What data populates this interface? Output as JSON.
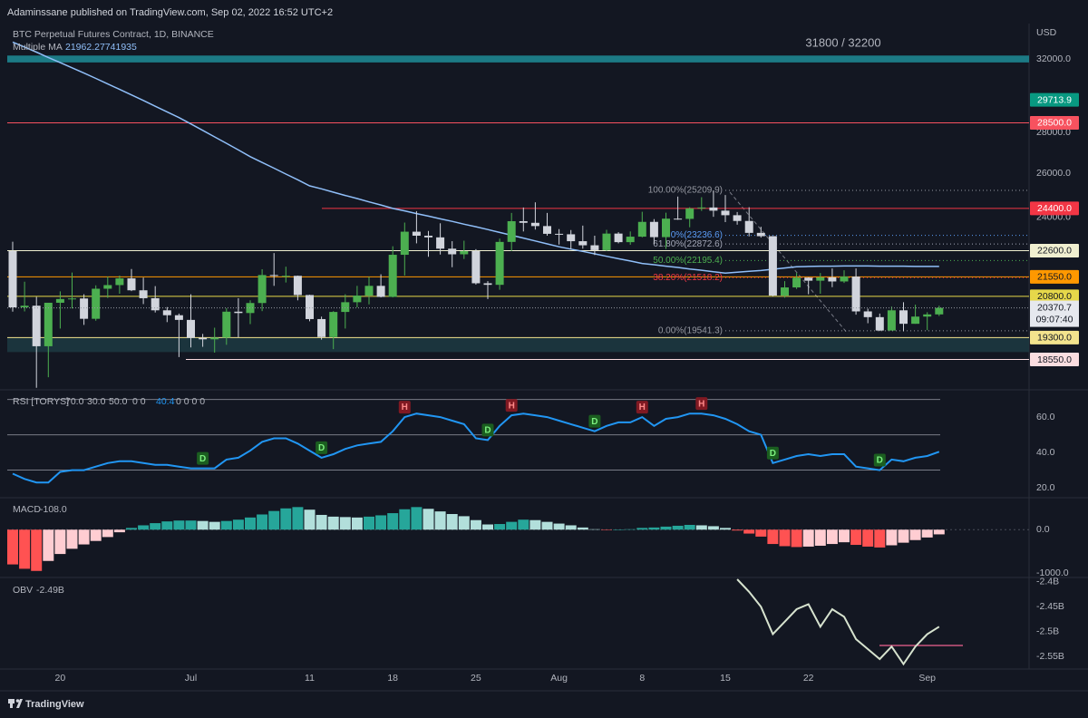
{
  "header": {
    "published": "Adaminssane published on TradingView.com, Sep 02, 2022 16:52 UTC+2",
    "currency": "USD"
  },
  "footer": {
    "logo": "TradingView"
  },
  "chart_data": [
    {
      "type": "candlestick",
      "title": "BTC Perpetual Futures Contract, 1D, BINANCE",
      "log_scale": true,
      "grid": false,
      "categories": [
        null,
        null,
        null,
        null,
        "20",
        null,
        null,
        null,
        null,
        null,
        null,
        null,
        null,
        null,
        null,
        "Jul",
        null,
        null,
        null,
        null,
        null,
        null,
        null,
        null,
        null,
        "11",
        null,
        null,
        null,
        null,
        null,
        null,
        "18",
        null,
        null,
        null,
        null,
        null,
        null,
        "25",
        null,
        null,
        null,
        null,
        null,
        null,
        "Aug",
        null,
        null,
        null,
        null,
        null,
        null,
        "8",
        null,
        null,
        null,
        null,
        null,
        null,
        "15",
        null,
        null,
        null,
        null,
        null,
        null,
        "22",
        null,
        null,
        null,
        null,
        null,
        null,
        null,
        null,
        null,
        "Sep",
        null
      ],
      "open": [
        22580,
        20390,
        20450,
        19000,
        20560,
        20700,
        20720,
        19970,
        21090,
        21230,
        21490,
        21030,
        20730,
        20280,
        20100,
        19930,
        19290,
        19240,
        19300,
        20230,
        20180,
        20550,
        21620,
        21590,
        21590,
        20850,
        19960,
        19320,
        20220,
        20580,
        20830,
        21200,
        20780,
        22430,
        23390,
        23220,
        23150,
        22680,
        22450,
        22580,
        21300,
        21240,
        22960,
        23840,
        23770,
        23630,
        23300,
        23280,
        22990,
        22820,
        22620,
        23310,
        22950,
        23180,
        23810,
        23160,
        23950,
        23940,
        24400,
        24440,
        24300,
        24100,
        23850,
        23340,
        23200,
        20830,
        21140,
        21520,
        21400,
        21530,
        21370,
        21560,
        20240,
        20030,
        19550,
        20280,
        19790,
        20050,
        20130
      ],
      "high": [
        22970,
        21360,
        20780,
        20430,
        20990,
        21720,
        20880,
        21220,
        21560,
        21600,
        21860,
        21520,
        21190,
        20400,
        20160,
        20880,
        19430,
        19650,
        20360,
        20730,
        20650,
        21850,
        22500,
        21950,
        21600,
        20860,
        20050,
        20250,
        20880,
        21200,
        21550,
        21650,
        22780,
        23780,
        24280,
        23420,
        23750,
        22990,
        23010,
        22660,
        21380,
        23100,
        24200,
        24440,
        24670,
        24200,
        23500,
        23460,
        23650,
        23220,
        23470,
        23370,
        23400,
        24250,
        23930,
        24210,
        24930,
        24450,
        24900,
        25210,
        25000,
        24240,
        24450,
        23600,
        23200,
        21380,
        21700,
        21530,
        21700,
        21880,
        21810,
        21880,
        20340,
        20160,
        20420,
        20580,
        20490,
        20210,
        20450
      ],
      "low": [
        20230,
        20240,
        17620,
        17960,
        19620,
        20350,
        19750,
        19900,
        20740,
        20900,
        21000,
        20510,
        20200,
        19850,
        18630,
        18960,
        18980,
        18780,
        19050,
        19310,
        19780,
        20250,
        21200,
        21330,
        20650,
        19880,
        19230,
        18900,
        19620,
        20390,
        20500,
        20760,
        20760,
        21600,
        22900,
        22350,
        22440,
        21930,
        22260,
        21250,
        20700,
        21050,
        22580,
        23400,
        23480,
        23220,
        22850,
        22660,
        22680,
        22420,
        22590,
        22900,
        22840,
        23150,
        22870,
        22670,
        23900,
        23580,
        24290,
        24030,
        23800,
        23690,
        23190,
        23140,
        20800,
        20750,
        21080,
        20880,
        20900,
        21150,
        21310,
        20120,
        19810,
        19530,
        19550,
        19520,
        19790,
        19560,
        20070
      ],
      "close": [
        20390,
        20450,
        19000,
        20560,
        20700,
        20720,
        19970,
        21090,
        21230,
        21490,
        21030,
        20730,
        20280,
        20100,
        19930,
        19290,
        19240,
        19300,
        20230,
        20180,
        20550,
        21620,
        21590,
        21590,
        20850,
        19960,
        19320,
        20220,
        20580,
        20830,
        21200,
        20780,
        22430,
        23390,
        23220,
        23150,
        22680,
        22450,
        22580,
        21300,
        21240,
        22960,
        23840,
        23770,
        23630,
        23300,
        23280,
        22990,
        22820,
        22620,
        23310,
        22950,
        23180,
        23810,
        23160,
        23950,
        23940,
        24400,
        24440,
        24300,
        24100,
        23850,
        23340,
        23200,
        20830,
        21140,
        21520,
        21400,
        21530,
        21370,
        21560,
        20240,
        20030,
        19550,
        20280,
        19790,
        20050,
        20130,
        20370.7
      ],
      "up_color": "#4caf50",
      "down_color": "#d1d4dc",
      "ylim": [
        17700,
        33900
      ],
      "yticks": [
        {
          "value": 32000,
          "label": "32000.0"
        },
        {
          "value": 28000,
          "label": "28000.0"
        },
        {
          "value": 26000,
          "label": "26000.0"
        },
        {
          "value": 24000,
          "label": "24000.0"
        }
      ],
      "ma": {
        "name": "Multiple MA",
        "color": "#90bff9",
        "values": [
          33000,
          32700,
          32400,
          32090,
          31790,
          31490,
          31190,
          30890,
          30580,
          30280,
          29980,
          29680,
          29370,
          29070,
          28770,
          28440,
          28110,
          27780,
          27460,
          27130,
          26800,
          26520,
          26250,
          25970,
          25700,
          25420,
          25280,
          25130,
          24980,
          24840,
          24690,
          24550,
          24400,
          24290,
          24170,
          24060,
          23940,
          23830,
          23710,
          23600,
          23480,
          23360,
          23240,
          23120,
          23000,
          22880,
          22760,
          22660,
          22570,
          22470,
          22370,
          22270,
          22180,
          22080,
          22030,
          21970,
          21920,
          21860,
          21810,
          21750,
          21700,
          21730,
          21770,
          21800,
          21850,
          21900,
          21950,
          21960,
          21970,
          21970,
          21980,
          21980,
          21980,
          21970,
          21970,
          21970,
          21960,
          21960,
          21962.27741935
        ]
      },
      "zones": [
        {
          "low": 31800,
          "high": 32200,
          "color": "#1e8c96",
          "label": "31800 / 32200"
        },
        {
          "low": 18800,
          "high": 19300,
          "color": "#1d3a42"
        }
      ],
      "levels": [
        {
          "price": 29713.9,
          "color": "#089981",
          "text_color": "#ffffff",
          "line": false
        },
        {
          "price": {
            "value": 28500,
            "label": "28500.0"
          },
          "color": "#f7525f",
          "text_color": "#ffffff",
          "line": true
        },
        {
          "price": {
            "value": 24400,
            "label": "24400.0"
          },
          "color": "#f23645",
          "text_color": "#ffffff",
          "line": true
        },
        {
          "price": {
            "value": 22600,
            "label": "22600.0"
          },
          "color": "#f0efd0",
          "text_color": "#131722",
          "line": true
        },
        {
          "price": {
            "value": 21550,
            "label": "21550.0"
          },
          "color": "#ff9800",
          "text_color": "#131722",
          "line": true
        },
        {
          "price": {
            "value": 20800,
            "label": "20800.0"
          },
          "color": "#e6d84a",
          "text_color": "#131722",
          "line": true
        },
        {
          "price": {
            "value": 19300,
            "label": "19300.0"
          },
          "color": "#f3e38d",
          "text_color": "#131722",
          "line": true
        },
        {
          "price": {
            "value": 18550,
            "label": "18550.0"
          },
          "color": "#fbdde0",
          "text_color": "#131722",
          "line": true
        }
      ],
      "fib": [
        {
          "value": 25209.9,
          "label": "100.00%(25209.9)",
          "color": "#9598a1"
        },
        {
          "value": 23236.6,
          "label": "0%(23236.6)",
          "color": "#5b9cf6"
        },
        {
          "value": 22872.6,
          "label": "61.80%(22872.6)",
          "color": "#a3a7b7"
        },
        {
          "value": 22195.4,
          "label": "50.00%(22195.4)",
          "color": "#4caf50"
        },
        {
          "value": 21518.2,
          "label": "38.20%(21518.2)",
          "color": "#f23645"
        },
        {
          "value": 19541.3,
          "label": "0.00%(19541.3)",
          "color": "#9598a1"
        }
      ],
      "countdown": "09:07:40"
    },
    {
      "type": "line",
      "title": "RSI [TORYS]",
      "color": "#2196f3",
      "values": [
        28,
        25,
        23,
        23,
        29,
        30,
        30,
        32,
        34,
        35,
        35,
        34,
        33,
        33,
        32,
        31,
        31,
        31,
        36,
        37,
        41,
        46,
        48,
        48,
        45,
        41,
        37,
        39,
        42,
        44,
        45,
        46,
        52,
        60,
        62,
        61,
        60,
        58,
        56,
        48,
        47,
        55,
        61,
        62,
        61,
        60,
        58,
        56,
        54,
        52,
        55,
        57,
        57,
        60,
        55,
        59,
        60,
        62,
        62,
        61,
        59,
        56,
        52,
        50,
        34,
        36,
        38,
        39,
        38,
        39,
        39,
        32,
        31,
        30,
        36,
        35,
        37,
        38,
        40.4
      ],
      "bands": [
        {
          "value": 70,
          "label": "70.0"
        },
        {
          "value": 30,
          "label": "30.0"
        },
        {
          "value": 50,
          "label": "50.0"
        }
      ],
      "params_extra": [
        "0 0",
        "0 0 0 0"
      ],
      "signals": [
        null,
        null,
        null,
        null,
        null,
        null,
        null,
        null,
        null,
        null,
        null,
        null,
        null,
        null,
        null,
        null,
        "D",
        null,
        null,
        null,
        null,
        null,
        null,
        null,
        null,
        null,
        "D",
        null,
        null,
        null,
        null,
        null,
        null,
        "H",
        null,
        null,
        null,
        null,
        null,
        null,
        "D",
        null,
        "H",
        null,
        null,
        null,
        null,
        null,
        null,
        "D",
        null,
        null,
        null,
        "H",
        null,
        null,
        null,
        null,
        "H",
        null,
        null,
        null,
        null,
        null,
        "D",
        null,
        null,
        null,
        null,
        null,
        null,
        null,
        null,
        "D",
        null,
        null,
        null,
        null,
        null
      ],
      "signal_colors": {
        "H": {
          "bg": "#801922",
          "fg": "#ff8a8a"
        },
        "D": {
          "bg": "#1b5e20",
          "fg": "#7cf07f"
        }
      },
      "ylim": [
        14.9,
        74.4
      ],
      "yticks": [
        {
          "value": 60,
          "label": "60.0"
        },
        {
          "value": 40,
          "label": "40.0"
        },
        {
          "value": 20,
          "label": "20.0"
        }
      ]
    },
    {
      "type": "bar",
      "title": "MACD",
      "values": [
        -800,
        -900,
        -950,
        -720,
        -560,
        -440,
        -340,
        -260,
        -170,
        -60,
        40,
        100,
        150,
        190,
        210,
        210,
        200,
        180,
        200,
        230,
        280,
        350,
        430,
        490,
        520,
        460,
        340,
        300,
        290,
        280,
        300,
        330,
        380,
        470,
        520,
        480,
        420,
        360,
        310,
        220,
        120,
        130,
        180,
        230,
        220,
        180,
        140,
        100,
        50,
        10,
        -10,
        0,
        10,
        40,
        50,
        70,
        90,
        110,
        100,
        80,
        40,
        -20,
        -90,
        -160,
        -330,
        -380,
        -400,
        -390,
        -370,
        -330,
        -290,
        -350,
        -390,
        -410,
        -360,
        -300,
        -240,
        -180,
        -108
      ],
      "value_labels": [
        null,
        null,
        null,
        null,
        null,
        null,
        null,
        null,
        null,
        null,
        null,
        null,
        null,
        null,
        null,
        null,
        null,
        null,
        null,
        null,
        null,
        null,
        null,
        null,
        null,
        null,
        null,
        null,
        null,
        null,
        null,
        null,
        null,
        null,
        null,
        null,
        null,
        null,
        null,
        null,
        null,
        null,
        null,
        null,
        null,
        null,
        null,
        null,
        null,
        null,
        null,
        null,
        null,
        null,
        null,
        null,
        null,
        null,
        null,
        null,
        null,
        null,
        null,
        null,
        null,
        null,
        null,
        null,
        null,
        null,
        null,
        null,
        null,
        null,
        null,
        null,
        null,
        null,
        "-108.0"
      ],
      "colors": {
        "grow_above": "#26a69a",
        "fall_above": "#b2dfdb",
        "grow_below": "#ff5252",
        "fall_below": "#ffcdd2"
      },
      "ylim": [
        -1080,
        715
      ],
      "yticks": [
        {
          "value": 0,
          "label": "0.0"
        },
        {
          "value": -1000,
          "label": "-1000.0"
        }
      ]
    },
    {
      "type": "line",
      "title": "OBV",
      "color": "#d7e3cf",
      "values": [
        null,
        null,
        null,
        null,
        null,
        null,
        null,
        null,
        null,
        null,
        null,
        null,
        null,
        null,
        null,
        null,
        null,
        null,
        null,
        null,
        null,
        null,
        null,
        null,
        null,
        null,
        null,
        null,
        null,
        null,
        null,
        null,
        null,
        null,
        null,
        null,
        null,
        null,
        null,
        null,
        null,
        null,
        null,
        null,
        null,
        null,
        null,
        null,
        null,
        null,
        null,
        null,
        null,
        null,
        null,
        null,
        null,
        null,
        null,
        null,
        null,
        -2.395,
        -2.42,
        -2.45,
        -2.505,
        -2.48,
        -2.455,
        -2.445,
        -2.49,
        -2.455,
        -2.47,
        -2.515,
        -2.535,
        -2.555,
        -2.53,
        -2.565,
        -2.53,
        -2.505,
        -2.49
      ],
      "value_labels": [
        null,
        null,
        null,
        null,
        null,
        null,
        null,
        null,
        null,
        null,
        null,
        null,
        null,
        null,
        null,
        null,
        null,
        null,
        null,
        null,
        null,
        null,
        null,
        null,
        null,
        null,
        null,
        null,
        null,
        null,
        null,
        null,
        null,
        null,
        null,
        null,
        null,
        null,
        null,
        null,
        null,
        null,
        null,
        null,
        null,
        null,
        null,
        null,
        null,
        null,
        null,
        null,
        null,
        null,
        null,
        null,
        null,
        null,
        null,
        null,
        null,
        null,
        null,
        null,
        null,
        null,
        null,
        null,
        null,
        null,
        null,
        null,
        null,
        null,
        null,
        null,
        null,
        null,
        "-2.49B"
      ],
      "ylim": [
        -2.575,
        -2.395
      ],
      "yticks": [
        {
          "value": -2.4,
          "label": "-2.4B"
        },
        {
          "value": -2.45,
          "label": "-2.45B"
        },
        {
          "value": -2.5,
          "label": "-2.5B"
        },
        {
          "value": -2.55,
          "label": "-2.55B"
        }
      ]
    }
  ]
}
